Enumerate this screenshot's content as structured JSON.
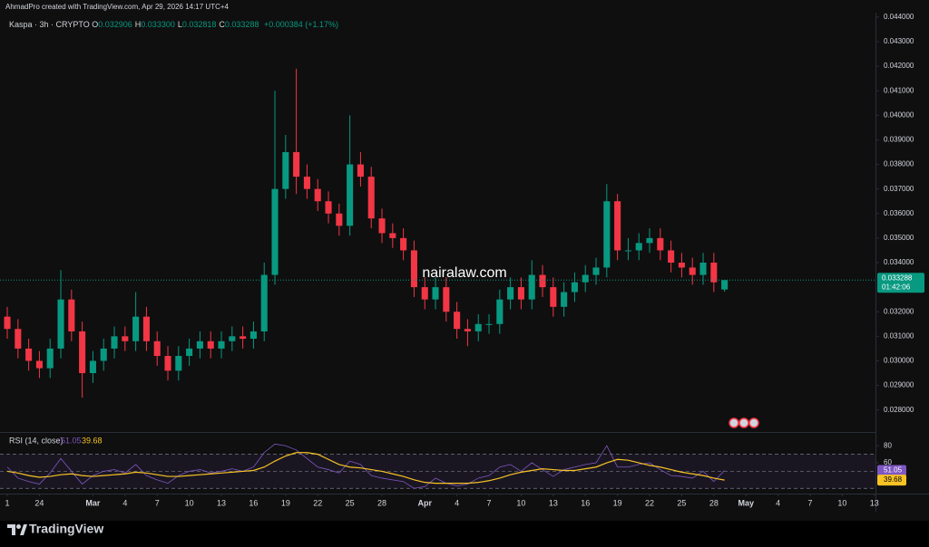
{
  "header": {
    "attribution": "AhmadPro created with TradingView.com, Apr 29, 2026 14:17 UTC+4",
    "symbol": "Kaspa · 3h · CRYPTO",
    "ohlc": [
      {
        "key": "O",
        "value": "0.032906"
      },
      {
        "key": "H",
        "value": "0.033300"
      },
      {
        "key": "L",
        "value": "0.032818"
      },
      {
        "key": "C",
        "value": "0.033288"
      }
    ],
    "change": "+0.000384 (+1.17%)"
  },
  "watermark": "nairalaw.com",
  "logo": "TradingView",
  "chart_data": [
    {
      "type": "candlestick",
      "up_color": "#089981",
      "down_color": "#f23645",
      "countdown": "01:42:06",
      "x": [
        0,
        1,
        2,
        3,
        4,
        5,
        6,
        7,
        8,
        9,
        10,
        11,
        12,
        13,
        14,
        15,
        16,
        17,
        18,
        19,
        20,
        21,
        22,
        23,
        24,
        25,
        26,
        27,
        28,
        29,
        30,
        31,
        32,
        33,
        34,
        35,
        36,
        37,
        38,
        39,
        40,
        41,
        42,
        43,
        44,
        45,
        46,
        47,
        48,
        49,
        50,
        51,
        52,
        53,
        54,
        55,
        56,
        57,
        58,
        59,
        60,
        61,
        62,
        63,
        64,
        65,
        66,
        67
      ],
      "open": [
        0.0318,
        0.0313,
        0.0305,
        0.03,
        0.0297,
        0.0305,
        0.0325,
        0.0312,
        0.0295,
        0.03,
        0.0305,
        0.031,
        0.0308,
        0.0318,
        0.0308,
        0.0302,
        0.0296,
        0.0302,
        0.0305,
        0.0308,
        0.0305,
        0.0308,
        0.031,
        0.0309,
        0.0312,
        0.0335,
        0.037,
        0.0385,
        0.0375,
        0.037,
        0.0365,
        0.036,
        0.0355,
        0.038,
        0.0375,
        0.0358,
        0.0352,
        0.035,
        0.0345,
        0.033,
        0.0325,
        0.033,
        0.032,
        0.0313,
        0.0312,
        0.0315,
        0.0315,
        0.0325,
        0.033,
        0.0325,
        0.0335,
        0.033,
        0.0322,
        0.0328,
        0.0332,
        0.0335,
        0.0338,
        0.0365,
        0.0345,
        0.0345,
        0.0348,
        0.035,
        0.0345,
        0.034,
        0.0338,
        0.0335,
        0.034,
        0.032906
      ],
      "high": [
        0.0322,
        0.0317,
        0.0309,
        0.0304,
        0.0309,
        0.0337,
        0.0329,
        0.0316,
        0.0304,
        0.0309,
        0.0314,
        0.0314,
        0.0328,
        0.0322,
        0.0312,
        0.0306,
        0.0306,
        0.0309,
        0.0312,
        0.0312,
        0.0312,
        0.0314,
        0.0314,
        0.0316,
        0.034,
        0.041,
        0.0392,
        0.0419,
        0.038,
        0.0374,
        0.0369,
        0.0364,
        0.04,
        0.0385,
        0.0379,
        0.0362,
        0.0356,
        0.0354,
        0.0349,
        0.0334,
        0.0334,
        0.0334,
        0.0324,
        0.0317,
        0.0319,
        0.0319,
        0.0329,
        0.0334,
        0.0334,
        0.0341,
        0.0339,
        0.0334,
        0.0332,
        0.0336,
        0.0339,
        0.0342,
        0.0372,
        0.0368,
        0.035,
        0.0352,
        0.0354,
        0.0354,
        0.0349,
        0.0344,
        0.0342,
        0.0344,
        0.0344,
        0.0333
      ],
      "low": [
        0.0309,
        0.0301,
        0.0296,
        0.0293,
        0.0293,
        0.0301,
        0.0308,
        0.0285,
        0.0291,
        0.0296,
        0.0301,
        0.0304,
        0.0304,
        0.0304,
        0.0298,
        0.0292,
        0.0292,
        0.0298,
        0.0301,
        0.0301,
        0.0301,
        0.0304,
        0.0305,
        0.0305,
        0.0308,
        0.0331,
        0.0366,
        0.0368,
        0.0366,
        0.0361,
        0.0356,
        0.0351,
        0.0351,
        0.0371,
        0.0354,
        0.0348,
        0.0346,
        0.0341,
        0.0326,
        0.0321,
        0.0321,
        0.0316,
        0.0309,
        0.0306,
        0.0308,
        0.0311,
        0.0311,
        0.0321,
        0.0321,
        0.0321,
        0.0326,
        0.0318,
        0.0318,
        0.0324,
        0.0328,
        0.0331,
        0.0334,
        0.0341,
        0.0341,
        0.0341,
        0.0344,
        0.0341,
        0.0336,
        0.0334,
        0.0331,
        0.0331,
        0.0328,
        0.032818
      ],
      "close": [
        0.0313,
        0.0305,
        0.03,
        0.0297,
        0.0305,
        0.0325,
        0.0312,
        0.0295,
        0.03,
        0.0305,
        0.031,
        0.0308,
        0.0318,
        0.0308,
        0.0302,
        0.0296,
        0.0302,
        0.0305,
        0.0308,
        0.0305,
        0.0308,
        0.031,
        0.0309,
        0.0312,
        0.0335,
        0.037,
        0.0385,
        0.0375,
        0.037,
        0.0365,
        0.036,
        0.0355,
        0.038,
        0.0375,
        0.0358,
        0.0352,
        0.035,
        0.0345,
        0.033,
        0.0325,
        0.033,
        0.032,
        0.0313,
        0.0312,
        0.0315,
        0.0315,
        0.0325,
        0.033,
        0.0325,
        0.0335,
        0.033,
        0.0322,
        0.0328,
        0.0332,
        0.0335,
        0.0338,
        0.0365,
        0.0345,
        0.0345,
        0.0348,
        0.035,
        0.0345,
        0.034,
        0.0338,
        0.0335,
        0.034,
        0.0332,
        0.033288
      ],
      "ylim": [
        0.02714,
        0.04418
      ],
      "yticks": [
        {
          "value": 0.028,
          "label": "0.028000"
        },
        {
          "value": 0.029,
          "label": "0.029000"
        },
        {
          "value": 0.03,
          "label": "0.030000"
        },
        {
          "value": 0.031,
          "label": "0.031000"
        },
        {
          "value": 0.032,
          "label": "0.032000"
        },
        {
          "value": 0.034,
          "label": "0.034000"
        },
        {
          "value": 0.035,
          "label": "0.035000"
        },
        {
          "value": 0.036,
          "label": "0.036000"
        },
        {
          "value": 0.037,
          "label": "0.037000"
        },
        {
          "value": 0.038,
          "label": "0.038000"
        },
        {
          "value": 0.039,
          "label": "0.039000"
        },
        {
          "value": 0.04,
          "label": "0.040000"
        },
        {
          "value": 0.041,
          "label": "0.041000"
        },
        {
          "value": 0.042,
          "label": "0.042000"
        },
        {
          "value": 0.043,
          "label": "0.043000"
        },
        {
          "value": 0.044,
          "label": "0.044000"
        }
      ],
      "xlim": [
        -0.68,
        81.1
      ],
      "xticks": [
        {
          "value": 0,
          "label": "1"
        },
        {
          "value": 3,
          "label": "24"
        },
        {
          "value": 8,
          "label": "Mar"
        },
        {
          "value": 11,
          "label": "4"
        },
        {
          "value": 14,
          "label": "7"
        },
        {
          "value": 17,
          "label": "10"
        },
        {
          "value": 20,
          "label": "13"
        },
        {
          "value": 23,
          "label": "16"
        },
        {
          "value": 26,
          "label": "19"
        },
        {
          "value": 29,
          "label": "22"
        },
        {
          "value": 32,
          "label": "25"
        },
        {
          "value": 35,
          "label": "28"
        },
        {
          "value": 39,
          "label": "Apr"
        },
        {
          "value": 42,
          "label": "4"
        },
        {
          "value": 45,
          "label": "7"
        },
        {
          "value": 48,
          "label": "10"
        },
        {
          "value": 51,
          "label": "13"
        },
        {
          "value": 54,
          "label": "16"
        },
        {
          "value": 57,
          "label": "19"
        },
        {
          "value": 60,
          "label": "22"
        },
        {
          "value": 63,
          "label": "25"
        },
        {
          "value": 66,
          "label": "28"
        },
        {
          "value": 69,
          "label": "May"
        },
        {
          "value": 72,
          "label": "4"
        },
        {
          "value": 75,
          "label": "7"
        },
        {
          "value": 78,
          "label": "10"
        },
        {
          "value": 81,
          "label": "13"
        }
      ]
    },
    {
      "type": "line",
      "title": "RSI (14, close)",
      "x": [
        0,
        1,
        2,
        3,
        4,
        5,
        6,
        7,
        8,
        9,
        10,
        11,
        12,
        13,
        14,
        15,
        16,
        17,
        18,
        19,
        20,
        21,
        22,
        23,
        24,
        25,
        26,
        27,
        28,
        29,
        30,
        31,
        32,
        33,
        34,
        35,
        36,
        37,
        38,
        39,
        40,
        41,
        42,
        43,
        44,
        45,
        46,
        47,
        48,
        49,
        50,
        51,
        52,
        53,
        54,
        55,
        56,
        57,
        58,
        59,
        60,
        61,
        62,
        63,
        64,
        65,
        66,
        67
      ],
      "series": [
        {
          "color": "#7e57c2",
          "values": [
            55,
            42,
            38,
            35,
            48,
            65,
            50,
            35,
            45,
            50,
            52,
            48,
            58,
            45,
            40,
            36,
            45,
            50,
            52,
            48,
            50,
            53,
            50,
            55,
            72,
            82,
            80,
            75,
            65,
            55,
            52,
            48,
            62,
            58,
            45,
            42,
            40,
            38,
            30,
            32,
            42,
            36,
            33,
            35,
            42,
            45,
            55,
            58,
            50,
            60,
            52,
            44,
            52,
            55,
            58,
            60,
            80,
            55,
            55,
            58,
            60,
            52,
            45,
            44,
            42,
            50,
            38,
            51.05
          ]
        },
        {
          "color": "#f7c325",
          "values": [
            50,
            48,
            45,
            43,
            44,
            46,
            47,
            45,
            44,
            45,
            46,
            47,
            49,
            48,
            46,
            44,
            44,
            45,
            46,
            47,
            48,
            49,
            50,
            51,
            55,
            62,
            68,
            72,
            72,
            70,
            64,
            58,
            55,
            54,
            52,
            50,
            47,
            44,
            40,
            37,
            36,
            36,
            36,
            36,
            37,
            39,
            42,
            46,
            49,
            51,
            53,
            52,
            51,
            51,
            53,
            55,
            60,
            64,
            63,
            60,
            57,
            55,
            52,
            49,
            47,
            45,
            42,
            39.68
          ]
        }
      ],
      "levels": [
        70,
        50,
        30
      ],
      "ylim": [
        26,
        93
      ],
      "yticks": [
        80,
        60
      ]
    }
  ]
}
